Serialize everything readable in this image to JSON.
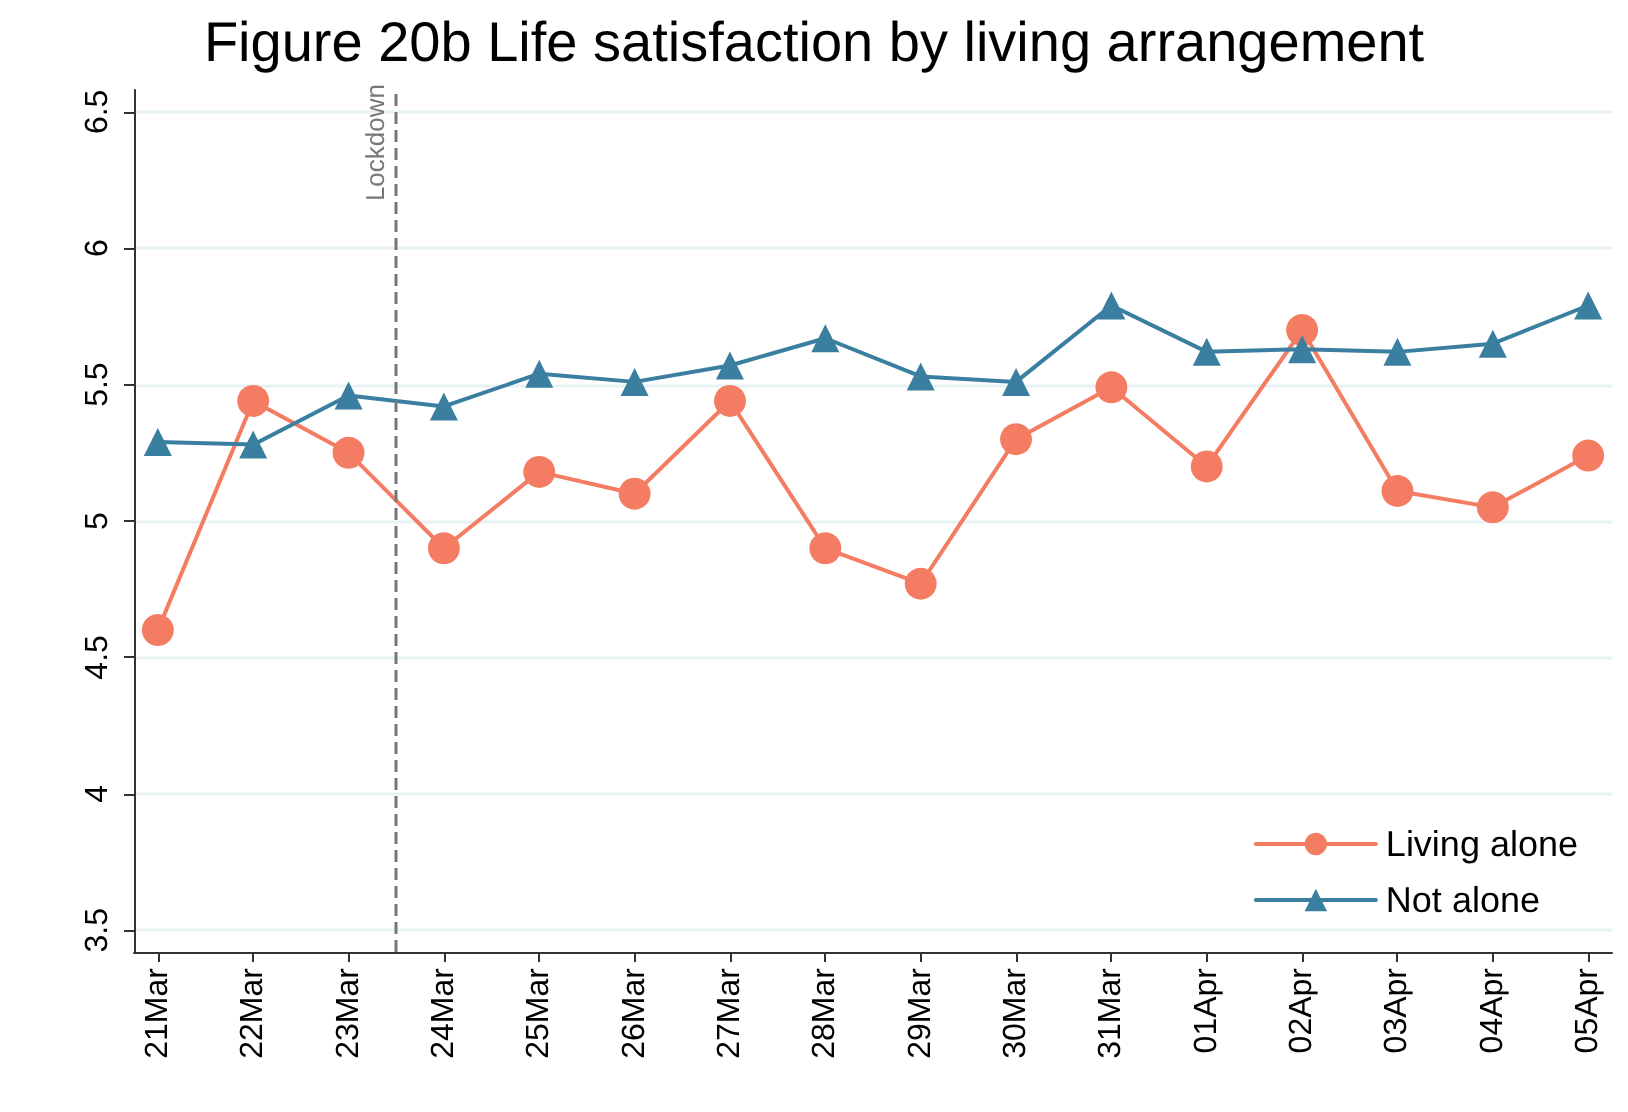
{
  "chart_data": {
    "type": "line",
    "title": "Figure 20b Life satisfaction by living arrangement",
    "x": [
      "--03-21",
      "--03-22",
      "--03-23",
      "--03-24",
      "--03-25",
      "--03-26",
      "--03-27",
      "--03-28",
      "--03-29",
      "--03-30",
      "--03-31",
      "--04-01",
      "--04-02",
      "--04-03",
      "--04-04",
      "--04-05"
    ],
    "series": [
      {
        "name": "Living alone",
        "color": "#f47c62",
        "marker": "circle",
        "values": [
          4.6,
          5.44,
          5.25,
          4.9,
          5.18,
          5.1,
          5.44,
          4.9,
          4.77,
          5.3,
          5.49,
          5.2,
          5.7,
          5.11,
          5.05,
          5.24
        ]
      },
      {
        "name": "Not alone",
        "color": "#3a7fa0",
        "marker": "triangle",
        "values": [
          5.29,
          5.28,
          5.46,
          5.42,
          5.54,
          5.51,
          5.57,
          5.67,
          5.53,
          5.51,
          5.79,
          5.62,
          5.63,
          5.62,
          5.65,
          5.79
        ]
      }
    ],
    "xlim": [
      "--03-20T18:00",
      "--04-05T06:00"
    ],
    "xticks": [
      {
        "value": "--03-21",
        "label": "21Mar"
      },
      {
        "value": "--03-22",
        "label": "22Mar"
      },
      {
        "value": "--03-23",
        "label": "23Mar"
      },
      {
        "value": "--03-24",
        "label": "24Mar"
      },
      {
        "value": "--03-25",
        "label": "25Mar"
      },
      {
        "value": "--03-26",
        "label": "26Mar"
      },
      {
        "value": "--03-27",
        "label": "27Mar"
      },
      {
        "value": "--03-28",
        "label": "28Mar"
      },
      {
        "value": "--03-29",
        "label": "29Mar"
      },
      {
        "value": "--03-30",
        "label": "30Mar"
      },
      {
        "value": "--03-31",
        "label": "31Mar"
      },
      {
        "value": "--04-01",
        "label": "01Apr"
      },
      {
        "value": "--04-02",
        "label": "02Apr"
      },
      {
        "value": "--04-03",
        "label": "03Apr"
      },
      {
        "value": "--04-04",
        "label": "04Apr"
      },
      {
        "value": "--04-05",
        "label": "05Apr"
      }
    ],
    "ylim": [
      3.42,
      6.58
    ],
    "yticks": [
      3.5,
      4,
      4.5,
      5,
      5.5,
      6,
      6.5
    ],
    "ref_lines": [
      {
        "axis": "x",
        "value": "--03-23T12:00",
        "label": "Lockdown",
        "color": "#777777",
        "line_style": "dashed"
      }
    ],
    "grid": "y",
    "legend": "bottom right",
    "line_style": "solid"
  }
}
